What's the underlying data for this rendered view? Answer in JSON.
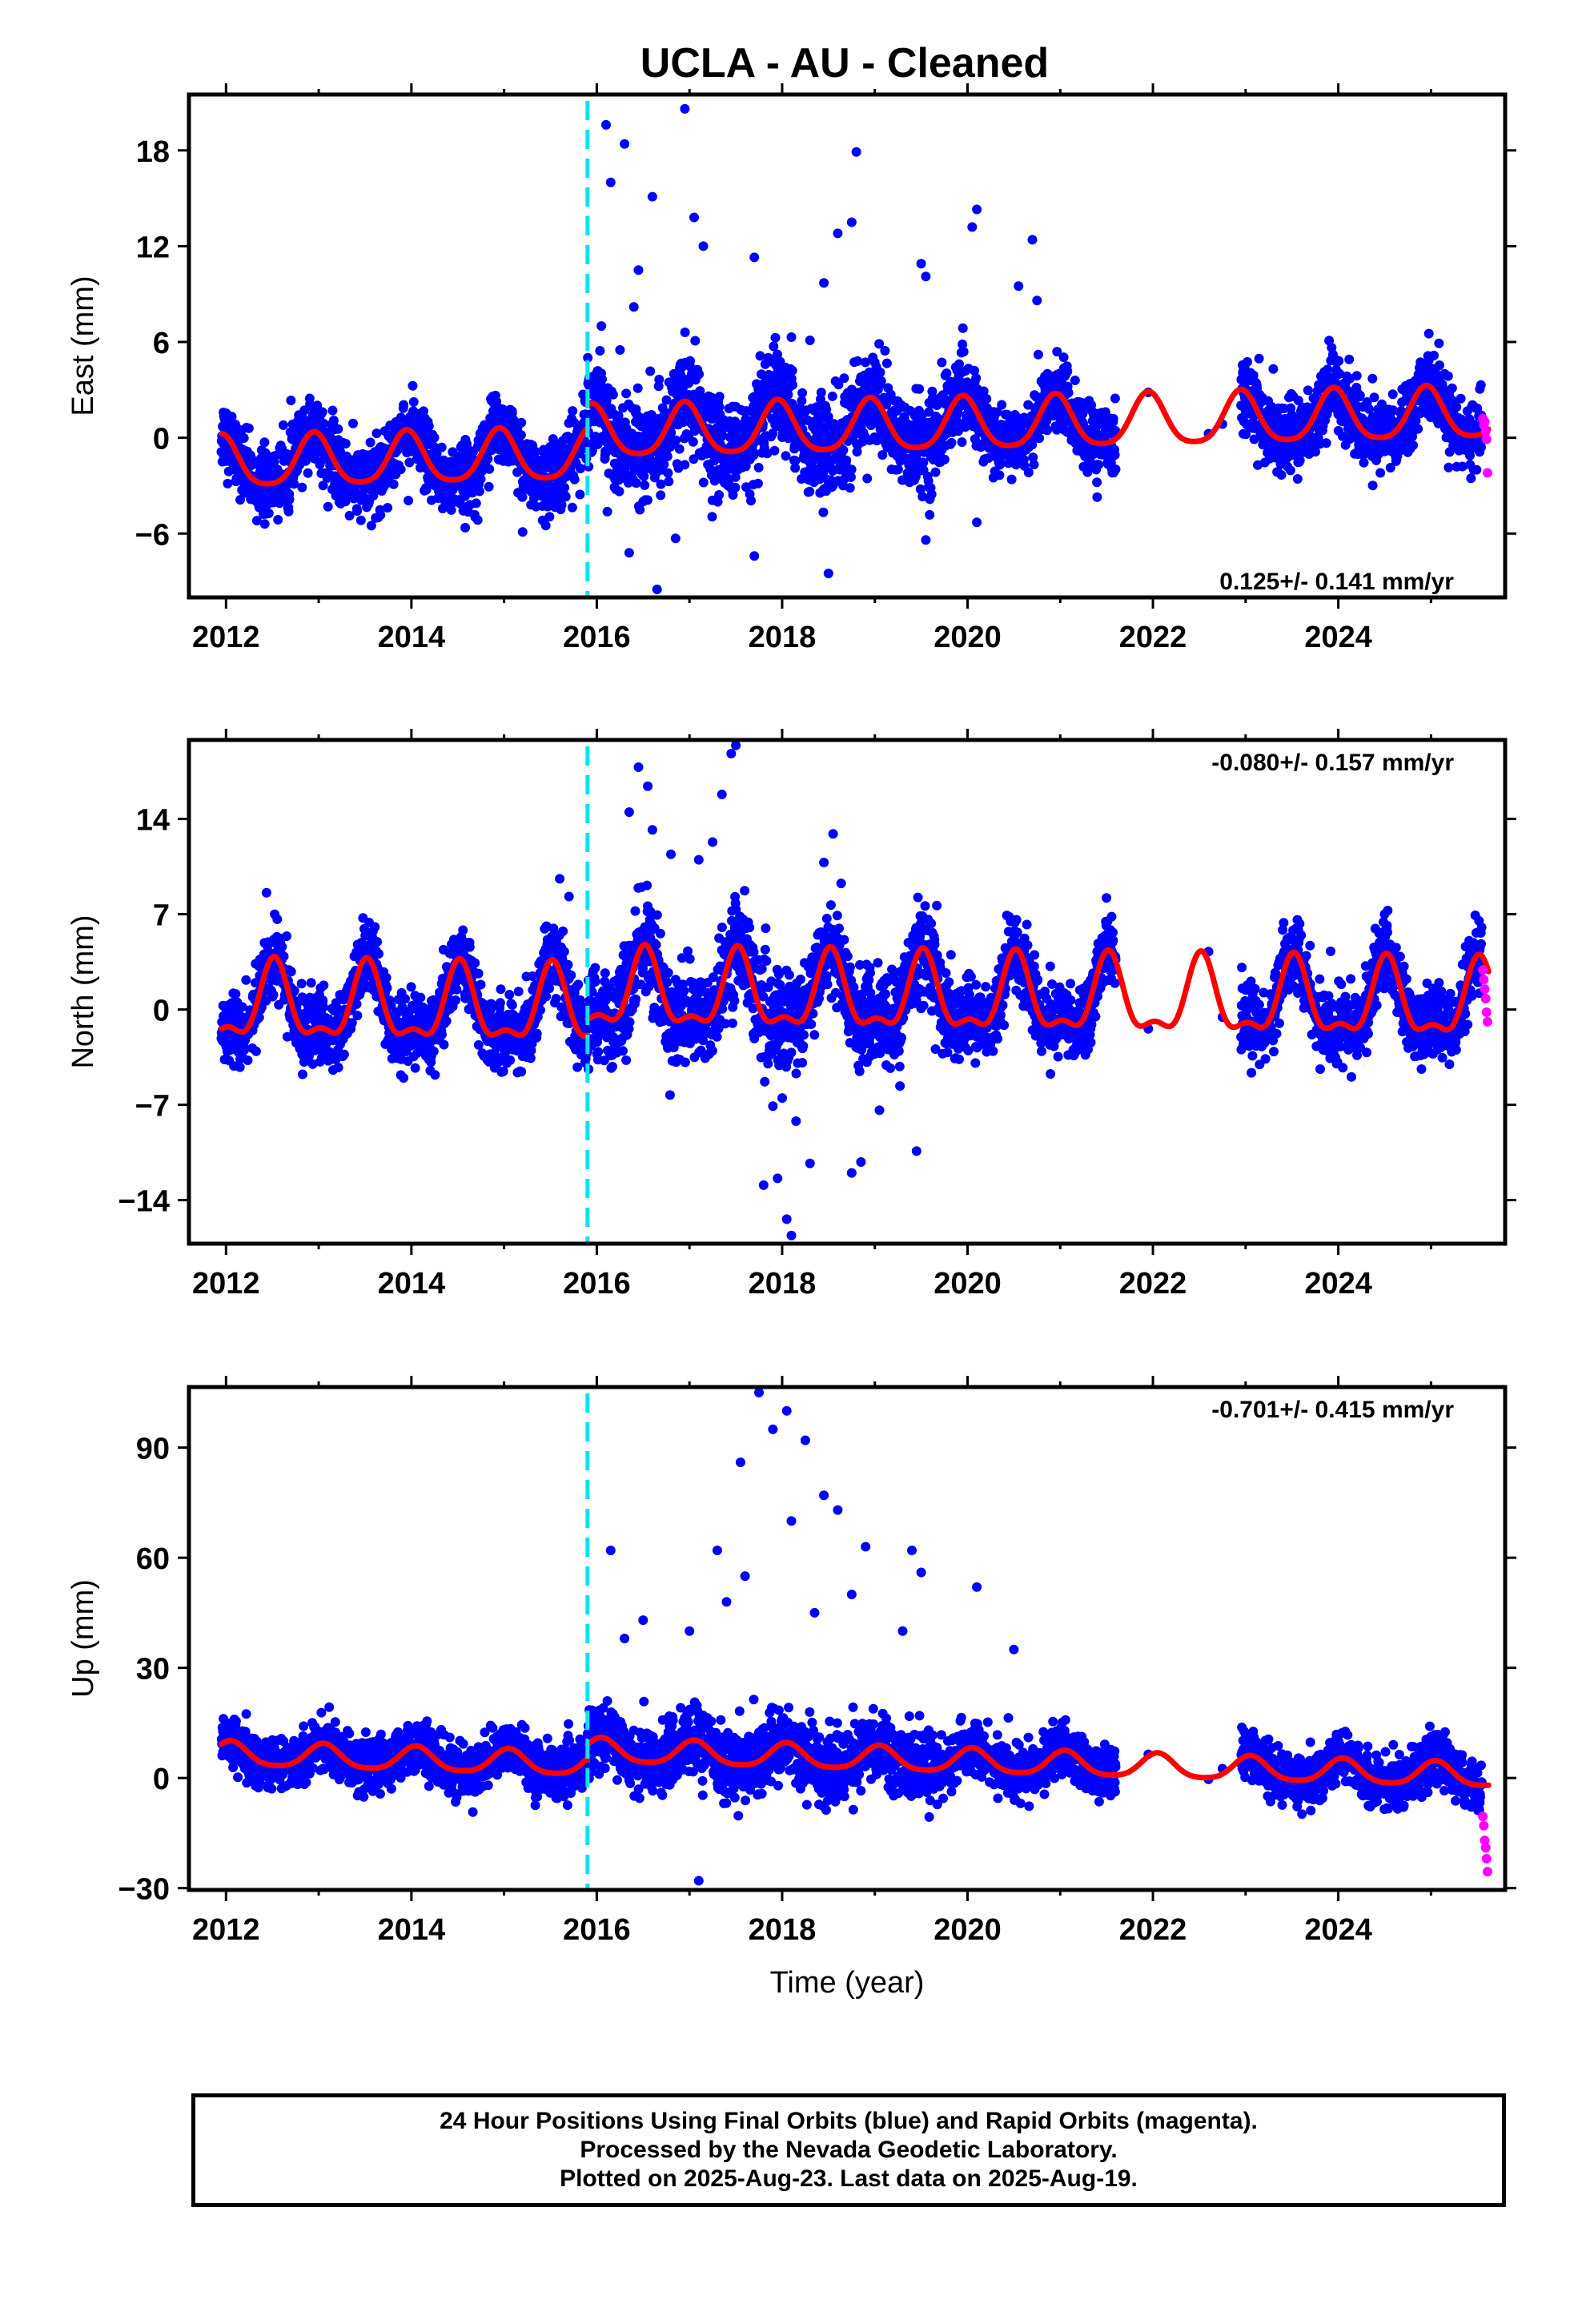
{
  "title": "UCLA  - AU - Cleaned",
  "xlabel": "Time (year)",
  "caption": [
    "24 Hour Positions Using Final Orbits (blue) and Rapid Orbits (magenta).",
    "Processed by the Nevada Geodetic Laboratory.",
    "Plotted on 2025-Aug-23. Last data on 2025-Aug-19."
  ],
  "colors": {
    "final_orbits": "#0000ff",
    "rapid_orbits": "#ff00ff",
    "model": "#ff0000",
    "antenna_change": "#00e5ee"
  },
  "chart_data": [
    {
      "type": "scatter",
      "component": "East",
      "ylabel": "East (mm)",
      "rate_label": "0.125+/- 0.141 mm/yr",
      "xlim": [
        2011.6,
        2025.8
      ],
      "ylim": [
        -10.0,
        21.5
      ],
      "xticks": [
        2012,
        2014,
        2016,
        2018,
        2020,
        2022,
        2024
      ],
      "yticks": [
        -6,
        0,
        6,
        12,
        18
      ],
      "ytick_labels": [
        "−6",
        "0",
        "6",
        "12",
        "18"
      ],
      "grid": false,
      "vline_x": 2015.9,
      "series": [
        {
          "name": "Final Orbits",
          "color": "#0000ff"
        },
        {
          "name": "Rapid Orbits",
          "color": "#ff00ff",
          "points": [
            [
              2025.56,
              1.2
            ],
            [
              2025.57,
              0.8
            ],
            [
              2025.58,
              1.0
            ],
            [
              2025.59,
              0.4
            ],
            [
              2025.6,
              -0.1
            ],
            [
              2025.61,
              -2.2
            ]
          ]
        },
        {
          "name": "Model",
          "color": "#ff0000"
        }
      ],
      "model": {
        "offset": 0.0,
        "rate": 0.125,
        "annual_amp": 1.6,
        "annual_peak": 0.95,
        "semi_amp": 0.3,
        "segments": [
          {
            "from": 2011.95,
            "to": 2015.9,
            "shift": -0.8
          },
          {
            "from": 2015.9,
            "to": 2025.62,
            "shift": 0.6
          }
        ]
      },
      "scatter_model": {
        "t_start": 2011.95,
        "t_end": 2025.55,
        "gaps": [
          [
            2021.6,
            2022.95
          ]
        ],
        "noise": 1.1
      },
      "outliers": [
        [
          2016.1,
          19.6
        ],
        [
          2016.3,
          18.4
        ],
        [
          2016.15,
          16.0
        ],
        [
          2016.6,
          15.1
        ],
        [
          2016.95,
          20.6
        ],
        [
          2017.05,
          13.8
        ],
        [
          2017.15,
          12.0
        ],
        [
          2016.45,
          10.5
        ],
        [
          2016.4,
          8.2
        ],
        [
          2016.05,
          7.0
        ],
        [
          2016.25,
          5.5
        ],
        [
          2018.8,
          17.9
        ],
        [
          2018.75,
          13.5
        ],
        [
          2018.6,
          12.8
        ],
        [
          2020.1,
          14.3
        ],
        [
          2020.05,
          13.2
        ],
        [
          2019.5,
          10.9
        ],
        [
          2019.55,
          10.1
        ],
        [
          2020.7,
          12.4
        ],
        [
          2020.55,
          9.5
        ],
        [
          2020.75,
          8.6
        ],
        [
          2018.45,
          9.7
        ],
        [
          2018.3,
          6.1
        ],
        [
          2017.7,
          11.3
        ],
        [
          2018.1,
          6.3
        ],
        [
          2016.5,
          -4.0
        ],
        [
          2016.65,
          -9.5
        ],
        [
          2016.85,
          -6.3
        ],
        [
          2015.2,
          -5.9
        ],
        [
          2015.45,
          -5.5
        ],
        [
          2017.7,
          -7.4
        ],
        [
          2018.5,
          -8.5
        ],
        [
          2019.55,
          -6.4
        ],
        [
          2020.1,
          -5.3
        ],
        [
          2016.35,
          -7.2
        ]
      ]
    },
    {
      "type": "scatter",
      "component": "North",
      "ylabel": "North (mm)",
      "rate_label": "-0.080+/- 0.157 mm/yr",
      "xlim": [
        2011.6,
        2025.8
      ],
      "ylim": [
        -17.2,
        19.8
      ],
      "xticks": [
        2012,
        2014,
        2016,
        2018,
        2020,
        2022,
        2024
      ],
      "yticks": [
        -14,
        -7,
        0,
        7,
        14
      ],
      "ytick_labels": [
        "−14",
        "−7",
        "0",
        "7",
        "14"
      ],
      "grid": false,
      "vline_x": 2015.9,
      "series": [
        {
          "name": "Final Orbits",
          "color": "#0000ff"
        },
        {
          "name": "Rapid Orbits",
          "color": "#ff00ff",
          "points": [
            [
              2025.56,
              2.9
            ],
            [
              2025.57,
              2.2
            ],
            [
              2025.58,
              1.5
            ],
            [
              2025.59,
              0.8
            ],
            [
              2025.6,
              -0.2
            ],
            [
              2025.61,
              -0.9
            ]
          ]
        },
        {
          "name": "Model",
          "color": "#ff0000"
        }
      ],
      "model": {
        "offset": 0.0,
        "rate": -0.08,
        "annual_amp": 2.6,
        "annual_peak": 0.52,
        "semi_amp": 1.1,
        "segments": [
          {
            "from": 2011.95,
            "to": 2015.9,
            "shift": -0.3
          },
          {
            "from": 2015.9,
            "to": 2025.62,
            "shift": 0.9
          }
        ]
      },
      "scatter_model": {
        "t_start": 2011.95,
        "t_end": 2025.55,
        "gaps": [
          [
            2021.6,
            2022.95
          ]
        ],
        "noise": 1.3
      },
      "outliers": [
        [
          2016.45,
          17.8
        ],
        [
          2016.55,
          16.4
        ],
        [
          2017.45,
          18.8
        ],
        [
          2017.5,
          19.4
        ],
        [
          2017.35,
          15.8
        ],
        [
          2017.25,
          12.3
        ],
        [
          2017.1,
          11.0
        ],
        [
          2016.8,
          11.4
        ],
        [
          2018.55,
          12.9
        ],
        [
          2018.45,
          10.8
        ],
        [
          2016.35,
          14.5
        ],
        [
          2016.6,
          13.2
        ],
        [
          2015.6,
          9.6
        ],
        [
          2015.7,
          8.3
        ],
        [
          2017.8,
          -12.9
        ],
        [
          2017.95,
          -12.4
        ],
        [
          2018.05,
          -15.4
        ],
        [
          2018.1,
          -16.6
        ],
        [
          2018.15,
          -8.2
        ],
        [
          2017.9,
          -7.1
        ],
        [
          2018.3,
          -11.3
        ],
        [
          2018.85,
          -11.2
        ],
        [
          2018.75,
          -12.0
        ],
        [
          2019.45,
          -10.4
        ],
        [
          2019.05,
          -7.4
        ],
        [
          2018.0,
          -6.5
        ]
      ]
    },
    {
      "type": "scatter",
      "component": "Up",
      "ylabel": "Up (mm)",
      "rate_label": "-0.701+/- 0.415 mm/yr",
      "xlim": [
        2011.6,
        2025.8
      ],
      "ylim": [
        -30.5,
        106.5
      ],
      "xticks": [
        2012,
        2014,
        2016,
        2018,
        2020,
        2022,
        2024
      ],
      "yticks": [
        -30,
        0,
        30,
        60,
        90
      ],
      "ytick_labels": [
        "−30",
        "0",
        "30",
        "60",
        "90"
      ],
      "grid": false,
      "vline_x": 2015.9,
      "series": [
        {
          "name": "Final Orbits",
          "color": "#0000ff"
        },
        {
          "name": "Rapid Orbits",
          "color": "#ff00ff",
          "points": [
            [
              2025.56,
              -10.5
            ],
            [
              2025.57,
              -13.0
            ],
            [
              2025.58,
              -17.0
            ],
            [
              2025.59,
              -19.0
            ],
            [
              2025.6,
              -22.0
            ],
            [
              2025.61,
              -25.5
            ]
          ]
        },
        {
          "name": "Model",
          "color": "#ff0000"
        }
      ],
      "model": {
        "offset": 1.2,
        "rate": -0.701,
        "annual_amp": 3.2,
        "annual_peak": 0.05,
        "semi_amp": 0.6,
        "segments": [
          {
            "from": 2011.95,
            "to": 2015.9,
            "shift": 0.5
          },
          {
            "from": 2015.9,
            "to": 2025.62,
            "shift": 4.2
          }
        ]
      },
      "scatter_model": {
        "t_start": 2011.95,
        "t_end": 2025.55,
        "gaps": [
          [
            2021.6,
            2022.95
          ]
        ],
        "noise": 3.4
      },
      "outliers": [
        [
          2017.75,
          105.0
        ],
        [
          2017.9,
          95.0
        ],
        [
          2018.05,
          100.0
        ],
        [
          2017.55,
          86.0
        ],
        [
          2018.25,
          92.0
        ],
        [
          2018.45,
          77.0
        ],
        [
          2018.6,
          73.0
        ],
        [
          2018.1,
          70.0
        ],
        [
          2017.3,
          62.0
        ],
        [
          2016.15,
          62.0
        ],
        [
          2018.9,
          63.0
        ],
        [
          2019.4,
          62.0
        ],
        [
          2020.1,
          52.0
        ],
        [
          2019.5,
          56.0
        ],
        [
          2017.0,
          40.0
        ],
        [
          2016.5,
          43.0
        ],
        [
          2016.3,
          38.0
        ],
        [
          2017.1,
          -28.0
        ],
        [
          2017.4,
          48.0
        ],
        [
          2017.6,
          55.0
        ],
        [
          2018.35,
          45.0
        ],
        [
          2018.75,
          50.0
        ],
        [
          2019.3,
          40.0
        ],
        [
          2020.5,
          35.0
        ]
      ]
    }
  ]
}
